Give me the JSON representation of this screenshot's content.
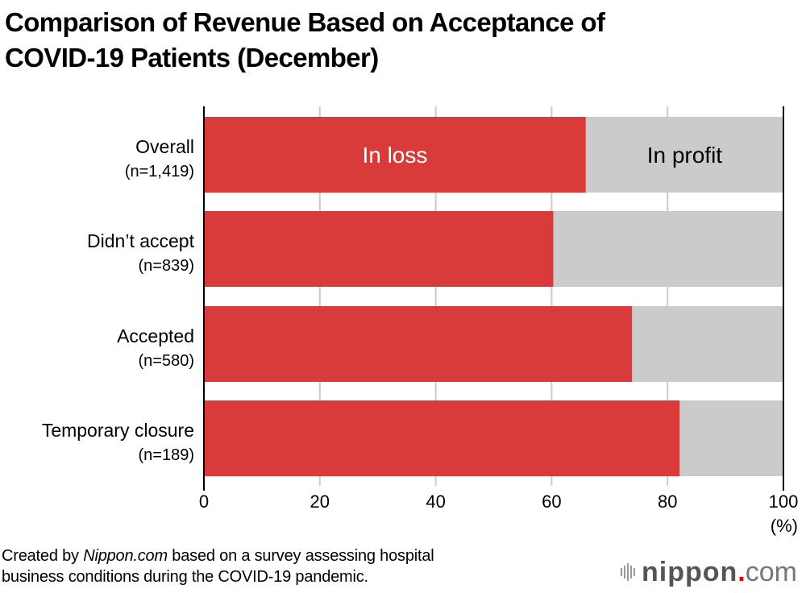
{
  "title_line1": "Comparison of Revenue Based on Acceptance of",
  "title_line2": "COVID-19 Patients (December)",
  "footnote": {
    "prefix": "Created by ",
    "source_italic": "Nippon.com",
    "suffix_line1": " based on a survey assessing hospital",
    "line2": "business conditions during the COVID-19 pandemic."
  },
  "logo": {
    "brand": "nippon",
    "dot": ".",
    "tld": "com"
  },
  "colors": {
    "loss": "#d93b3b",
    "profit": "#cbcbcb",
    "grid": "#cccccc",
    "axis": "#000000"
  },
  "chart_data": {
    "type": "bar",
    "orientation": "horizontal",
    "stacked": true,
    "title": "Comparison of Revenue Based on Acceptance of COVID-19 Patients (December)",
    "categories": [
      {
        "label": "Overall",
        "sublabel": "(n=1,419)"
      },
      {
        "label": "Didn’t accept",
        "sublabel": "(n=839)"
      },
      {
        "label": "Accepted",
        "sublabel": "(n=580)"
      },
      {
        "label": "Temporary closure",
        "sublabel": "(n=189)"
      }
    ],
    "series": [
      {
        "name": "In loss",
        "values": [
          65.9,
          60.3,
          73.9,
          82.1
        ]
      },
      {
        "name": "In profit",
        "values": [
          34.1,
          39.7,
          26.1,
          17.9
        ]
      }
    ],
    "xlabel": "(%)",
    "xlim": [
      0,
      100
    ],
    "xticks": [
      0,
      20,
      40,
      60,
      80,
      100
    ],
    "grid": true,
    "legend": "inline-first-bar"
  }
}
